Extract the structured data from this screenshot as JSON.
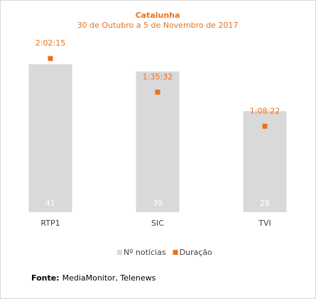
{
  "chart_data": {
    "type": "bar",
    "title": "Catalunha",
    "subtitle": "30 de Outubro a 5 de Novembro de 2017",
    "categories": [
      "RTP1",
      "SIC",
      "TVI"
    ],
    "series": [
      {
        "name": "Nº notícias",
        "color": "#d9d9d9",
        "values": [
          41,
          39,
          28
        ]
      },
      {
        "name": "Duração",
        "color": "#e8711e",
        "axis": "y2",
        "type": "scatter",
        "values": [
          7335,
          5732,
          4102
        ],
        "value_labels": [
          "2:02:15",
          "1:35:32",
          "1:08:22"
        ]
      }
    ],
    "ylim": [
      0,
      45
    ],
    "y2lim": [
      0,
      7750
    ],
    "grid": false,
    "legend": "bottom",
    "source_label": "Fonte:",
    "source": "MediaMonitor, Telenews"
  }
}
